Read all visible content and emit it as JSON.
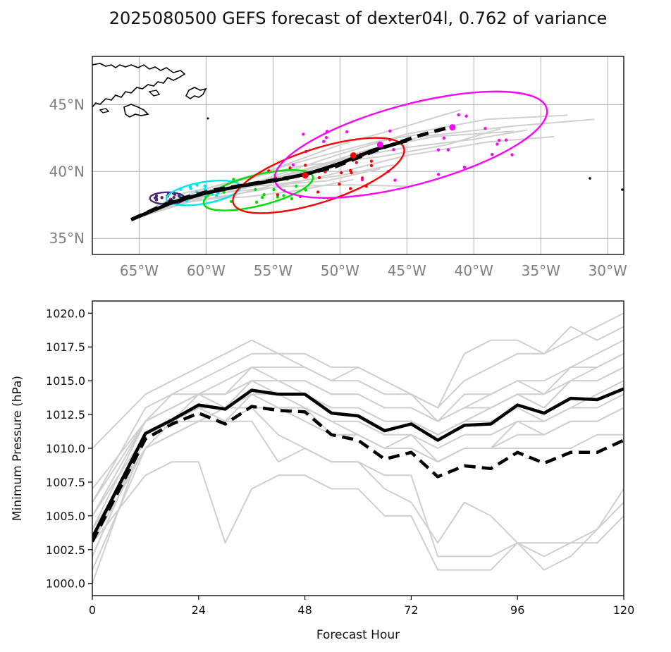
{
  "figure": {
    "title": "2025080500 GEFS forecast of dexter04l, 0.762 of variance"
  },
  "chart_data": [
    {
      "type": "scatter",
      "subtype": "track-map",
      "x_ticks": [
        -65,
        -60,
        -55,
        -50,
        -45,
        -40,
        -35,
        -30
      ],
      "x_tick_labels": [
        "65°W",
        "60°W",
        "55°W",
        "50°W",
        "45°W",
        "40°W",
        "35°W",
        "30°W"
      ],
      "y_ticks": [
        35,
        40,
        45
      ],
      "y_tick_labels": [
        "35°N",
        "40°N",
        "45°N"
      ],
      "xlim": [
        -68.5,
        -28.8
      ],
      "ylim": [
        33.8,
        48.6
      ],
      "grid": true,
      "mean_track": {
        "x": [
          -65.6,
          -62.5,
          -60.0,
          -57.5,
          -55.0,
          -52.5,
          -50.0,
          -47.5,
          -45.0
        ],
        "y": [
          36.4,
          37.7,
          38.4,
          38.9,
          39.3,
          39.8,
          40.6,
          41.6,
          42.3
        ]
      },
      "dashed_track": {
        "x": [
          -65.6,
          -62.5,
          -59.5,
          -56.5,
          -53.5,
          -50.5,
          -47.0,
          -44.0,
          -41.5
        ],
        "y": [
          36.4,
          37.8,
          38.6,
          39.1,
          39.6,
          40.3,
          41.7,
          42.7,
          43.4
        ]
      },
      "ellipses": [
        {
          "color": "#4b2a73",
          "cx": -62.9,
          "cy": 38.0,
          "rx": 1.3,
          "ry": 0.45,
          "angle": 0
        },
        {
          "color": "#00e5ee",
          "cx": -60.2,
          "cy": 38.4,
          "rx": 2.8,
          "ry": 0.8,
          "angle": 10
        },
        {
          "color": "#00dd00",
          "cx": -56.1,
          "cy": 38.6,
          "rx": 4.2,
          "ry": 1.15,
          "angle": 14
        },
        {
          "color": "#ff0000",
          "cx": -51.6,
          "cy": 39.7,
          "rx": 6.7,
          "ry": 2.0,
          "angle": 18
        },
        {
          "color": "#ff00ff",
          "cx": -44.7,
          "cy": 42.0,
          "rx": 10.5,
          "ry": 3.0,
          "angle": 15
        }
      ],
      "centers": [
        {
          "color": "#ff0000",
          "x": -52.6,
          "y": 39.7
        },
        {
          "color": "#ff0000",
          "x": -49.0,
          "y": 41.2
        },
        {
          "color": "#ff00ff",
          "x": -47.0,
          "y": 42.0
        },
        {
          "color": "#ff00ff",
          "x": -41.6,
          "y": 43.3
        }
      ]
    },
    {
      "type": "line",
      "x": [
        0,
        12,
        18,
        24,
        30,
        36,
        42,
        48,
        54,
        60,
        66,
        72,
        78,
        84,
        90,
        96,
        102,
        108,
        114,
        120
      ],
      "xlabel": "Forecast Hour",
      "ylabel": "Minimum Pressure (hPa)",
      "xlim": [
        0,
        120
      ],
      "ylim": [
        999.1,
        1020.9
      ],
      "x_ticks": [
        0,
        24,
        48,
        72,
        96,
        120
      ],
      "y_ticks": [
        1000.0,
        1002.5,
        1005.0,
        1007.5,
        1010.0,
        1012.5,
        1015.0,
        1017.5,
        1020.0
      ],
      "y_tick_labels": [
        "1000.0",
        "1002.5",
        "1005.0",
        "1007.5",
        "1010.0",
        "1012.5",
        "1015.0",
        "1017.5",
        "1020.0"
      ],
      "grid": false,
      "series": [
        {
          "style": "mean",
          "values": [
            1003.4,
            1011.1,
            1012.1,
            1013.2,
            1012.9,
            1014.3,
            1014.0,
            1014.0,
            1012.6,
            1012.4,
            1011.3,
            1011.8,
            1010.6,
            1011.7,
            1011.8,
            1013.2,
            1012.6,
            1013.7,
            1013.6,
            1014.4
          ]
        },
        {
          "style": "dashed",
          "values": [
            1003.1,
            1010.7,
            1011.8,
            1012.6,
            1011.8,
            1013.1,
            1012.8,
            1012.7,
            1011.0,
            1010.6,
            1009.2,
            1009.7,
            1007.9,
            1008.7,
            1008.5,
            1009.7,
            1008.9,
            1009.7,
            1009.7,
            1010.6
          ]
        },
        {
          "style": "member",
          "values": [
            1003.0,
            1010.0,
            1012.0,
            1013.0,
            1012.0,
            1014.0,
            1013.0,
            1013.0,
            1011.0,
            1011.0,
            1010.0,
            1010.0,
            1009.0,
            1010.0,
            1010.0,
            1011.0,
            1011.0,
            1012.0,
            1012.0,
            1013.0
          ]
        },
        {
          "style": "member",
          "values": [
            1005.0,
            1011.0,
            1012.0,
            1013.0,
            1013.0,
            1015.0,
            1014.0,
            1014.0,
            1013.0,
            1013.0,
            1012.0,
            1012.0,
            1011.0,
            1012.0,
            1013.0,
            1014.0,
            1014.0,
            1015.0,
            1016.0,
            1017.0
          ]
        },
        {
          "style": "member",
          "values": [
            1001.0,
            1010.0,
            1011.0,
            1012.0,
            1012.0,
            1013.0,
            1013.0,
            1013.0,
            1012.0,
            1011.0,
            1010.0,
            1011.0,
            1009.0,
            1010.0,
            1010.0,
            1012.0,
            1011.0,
            1012.0,
            1012.0,
            1013.0
          ]
        },
        {
          "style": "member",
          "values": [
            1007.0,
            1012.0,
            1013.0,
            1014.0,
            1014.0,
            1016.0,
            1015.0,
            1015.0,
            1014.0,
            1014.0,
            1013.0,
            1013.0,
            1012.0,
            1014.0,
            1014.0,
            1015.0,
            1015.0,
            1016.0,
            1017.0,
            1018.0
          ]
        },
        {
          "style": "member",
          "values": [
            1002.0,
            1011.0,
            1012.0,
            1013.0,
            1013.0,
            1014.0,
            1014.0,
            1013.0,
            1012.0,
            1012.0,
            1011.0,
            1011.0,
            1010.0,
            1011.0,
            1011.0,
            1012.0,
            1012.0,
            1013.0,
            1013.0,
            1014.0
          ]
        },
        {
          "style": "member",
          "values": [
            1010.0,
            1014.0,
            1015.0,
            1016.0,
            1017.0,
            1018.0,
            1017.0,
            1017.0,
            1016.0,
            1016.0,
            1015.0,
            1014.0,
            1013.0,
            1017.0,
            1018.0,
            1018.0,
            1017.0,
            1018.0,
            1019.0,
            1020.0
          ]
        },
        {
          "style": "member",
          "values": [
            1004.0,
            1012.0,
            1014.0,
            1015.0,
            1016.0,
            1017.0,
            1017.0,
            1016.0,
            1015.0,
            1016.0,
            1015.0,
            1014.0,
            1013.0,
            1015.0,
            1016.0,
            1017.0,
            1017.0,
            1019.0,
            1018.0,
            1019.0
          ]
        },
        {
          "style": "member",
          "values": [
            1000.0,
            1011.0,
            1012.0,
            1014.0,
            1014.0,
            1015.0,
            1015.0,
            1014.0,
            1013.0,
            1013.0,
            1012.0,
            1012.0,
            1011.0,
            1012.0,
            1013.0,
            1014.0,
            1013.0,
            1015.0,
            1015.0,
            1016.0
          ]
        },
        {
          "style": "member",
          "values": [
            1006.0,
            1013.0,
            1014.0,
            1014.0,
            1015.0,
            1016.0,
            1016.0,
            1016.0,
            1015.0,
            1015.0,
            1014.0,
            1014.0,
            1012.0,
            1013.0,
            1014.0,
            1015.0,
            1014.0,
            1016.0,
            1016.0,
            1017.0
          ]
        },
        {
          "style": "member",
          "values": [
            1003.0,
            1011.0,
            1012.0,
            1013.0,
            1013.0,
            1013.0,
            1013.0,
            1012.0,
            1011.0,
            1011.0,
            1010.0,
            1010.0,
            1009.0,
            1010.0,
            1010.0,
            1010.0,
            1010.0,
            1010.0,
            1011.0,
            1011.0
          ]
        },
        {
          "style": "member",
          "values": [
            1005.0,
            1012.0,
            1013.0,
            1014.0,
            1014.0,
            1015.0,
            1015.0,
            1015.0,
            1014.0,
            1014.0,
            1013.0,
            1013.0,
            1012.0,
            1013.0,
            1013.0,
            1014.0,
            1013.0,
            1015.0,
            1015.0,
            1016.0
          ]
        },
        {
          "style": "member",
          "values": [
            1003.0,
            1008.0,
            1009.0,
            1009.0,
            1003.0,
            1007.0,
            1008.0,
            1008.0,
            1007.0,
            1007.0,
            1005.0,
            1005.0,
            1001.0,
            1001.0,
            1001.0,
            1003.0,
            1001.0,
            1002.0,
            1004.0,
            1006.0
          ]
        },
        {
          "style": "member",
          "values": [
            1004.0,
            1010.0,
            1011.0,
            1012.0,
            1012.0,
            1012.0,
            1009.0,
            1010.0,
            1009.0,
            1009.0,
            1007.0,
            1006.0,
            1003.0,
            1006.0,
            1005.0,
            1003.0,
            1003.0,
            1003.0,
            1003.0,
            1005.0
          ]
        },
        {
          "style": "member",
          "values": [
            1002.0,
            1011.0,
            1012.0,
            1012.0,
            1013.0,
            1013.0,
            1011.0,
            1010.0,
            1009.0,
            1009.0,
            1008.0,
            1008.0,
            1002.0,
            1002.0,
            1002.0,
            1003.0,
            1002.0,
            1003.0,
            1004.0,
            1007.0
          ]
        },
        {
          "style": "member",
          "values": [
            1006.0,
            1012.0,
            1013.0,
            1014.0,
            1013.0,
            1015.0,
            1014.0,
            1014.0,
            1013.0,
            1013.0,
            1012.0,
            1012.0,
            1011.0,
            1012.0,
            1012.0,
            1013.0,
            1012.0,
            1013.0,
            1014.0,
            1015.0
          ]
        }
      ]
    }
  ]
}
